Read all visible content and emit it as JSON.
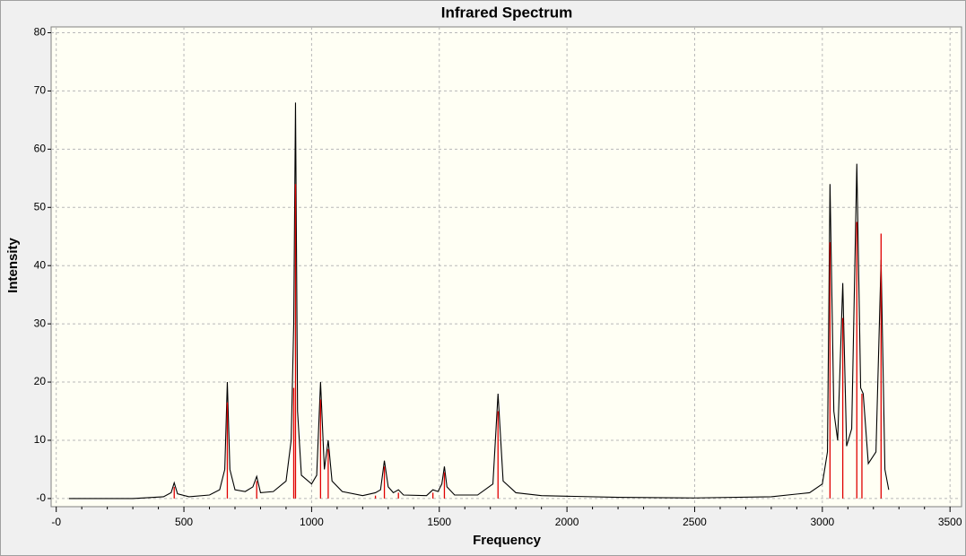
{
  "chart_data": {
    "type": "line",
    "title": "Infrared Spectrum",
    "x_label": "Frequency",
    "y_label": "Intensity",
    "xlim": [
      -20,
      3545
    ],
    "ylim": [
      -1.4,
      81
    ],
    "xticks": [
      {
        "value": 0,
        "label": "-0"
      },
      500,
      1000,
      1500,
      2000,
      2500,
      3000,
      3500
    ],
    "xminorticks": [
      100,
      200,
      300,
      400,
      600,
      700,
      800,
      900,
      1100,
      1200,
      1300,
      1400,
      1600,
      1700,
      1800,
      1900,
      2100,
      2200,
      2300,
      2400,
      2600,
      2700,
      2800,
      2900,
      3100,
      3200,
      3300,
      3400
    ],
    "yticks": [
      {
        "value": 0,
        "label": "-0"
      },
      10,
      20,
      30,
      40,
      50,
      60,
      70,
      80
    ],
    "grid": true,
    "background": "#fffff4",
    "series": [
      {
        "type": "line",
        "color": "#000000",
        "x": [
          50,
          300,
          420,
          450,
          462,
          475,
          520,
          600,
          640,
          660,
          670,
          680,
          700,
          740,
          770,
          785,
          800,
          850,
          900,
          920,
          930,
          937,
          945,
          960,
          1000,
          1020,
          1035,
          1050,
          1065,
          1080,
          1120,
          1200,
          1250,
          1270,
          1285,
          1300,
          1320,
          1340,
          1360,
          1450,
          1475,
          1495,
          1510,
          1520,
          1530,
          1560,
          1650,
          1710,
          1730,
          1750,
          1800,
          1900,
          2200,
          2500,
          2800,
          2950,
          3000,
          3020,
          3030,
          3045,
          3060,
          3080,
          3095,
          3115,
          3135,
          3150,
          3160,
          3180,
          3210,
          3230,
          3245,
          3260
        ],
        "values": [
          0,
          0,
          0.3,
          1,
          2.7,
          0.8,
          0.3,
          0.6,
          1.5,
          5,
          20,
          5,
          1.5,
          1.2,
          2,
          3.8,
          1,
          1.2,
          3,
          10,
          30,
          68,
          15,
          4,
          2.5,
          4,
          20,
          5,
          10,
          3,
          1.2,
          0.5,
          1,
          1.5,
          6.5,
          2,
          1,
          1.5,
          0.6,
          0.5,
          1.5,
          1.2,
          2.5,
          5.5,
          2,
          0.6,
          0.6,
          2.5,
          18,
          3,
          1,
          0.5,
          0.2,
          0.1,
          0.3,
          1,
          2.5,
          8,
          54,
          15,
          10,
          37,
          9,
          12,
          57.5,
          19,
          18,
          6,
          8,
          41,
          5,
          1.5
        ]
      },
      {
        "type": "stem",
        "color": "#e00000",
        "x": [
          462,
          670,
          785,
          930,
          937,
          1035,
          1065,
          1250,
          1285,
          1340,
          1475,
          1520,
          1730,
          3030,
          3080,
          3135,
          3155,
          3230
        ],
        "values": [
          2,
          16.5,
          3,
          19,
          54,
          17,
          8.5,
          0.5,
          5.5,
          1,
          1,
          4.5,
          15,
          44,
          31,
          47.5,
          18,
          45.5
        ]
      }
    ]
  }
}
